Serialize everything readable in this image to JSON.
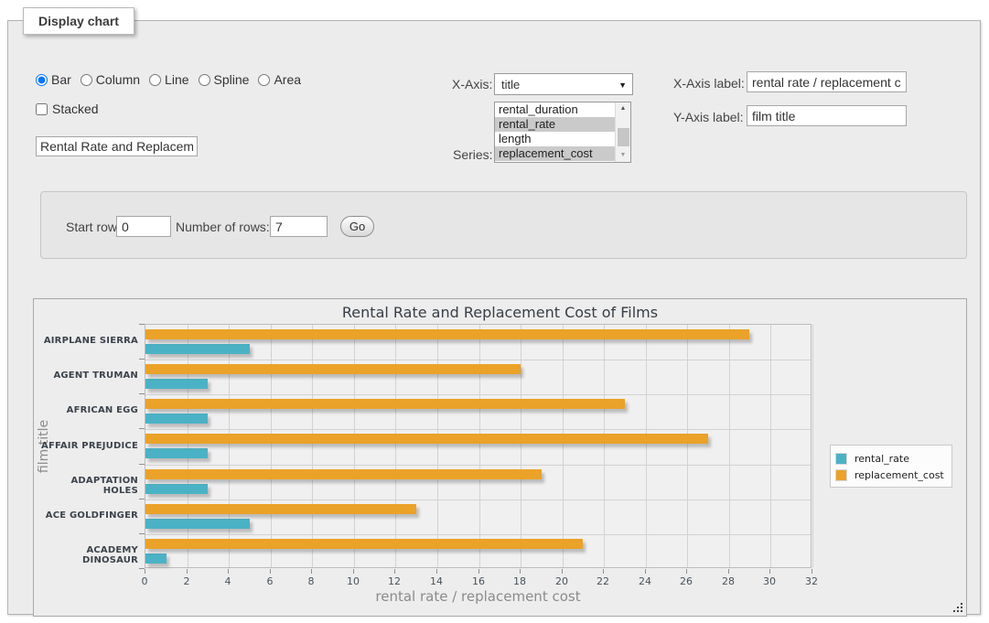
{
  "panel": {
    "legend": "Display chart"
  },
  "chart_type": {
    "options": [
      {
        "label": "Bar",
        "selected": true
      },
      {
        "label": "Column",
        "selected": false
      },
      {
        "label": "Line",
        "selected": false
      },
      {
        "label": "Spline",
        "selected": false
      },
      {
        "label": "Area",
        "selected": false
      }
    ]
  },
  "stacked": {
    "label": "Stacked",
    "checked": false
  },
  "title_input": {
    "value": "Rental Rate and Replacement Cost of Films"
  },
  "x_axis": {
    "label": "X-Axis:",
    "value": "title",
    "arrow_icon": "▼"
  },
  "series_select": {
    "label": "Series:",
    "options": [
      {
        "label": "rental_duration",
        "selected": false
      },
      {
        "label": "rental_rate",
        "selected": true
      },
      {
        "label": "length",
        "selected": false
      },
      {
        "label": "replacement_cost",
        "selected": true
      }
    ],
    "scroll_up_icon": "▲",
    "scroll_down_icon": "▼"
  },
  "x_axis_label_field": {
    "label": "X-Axis label:",
    "value": "rental rate / replacement cost"
  },
  "y_axis_label_field": {
    "label": "Y-Axis label:",
    "value": "film title"
  },
  "rows_form": {
    "start_row_label": "Start row:",
    "start_row_value": "0",
    "num_rows_label": "Number of rows:",
    "num_rows_value": "7",
    "go_label": "Go"
  },
  "chart_data": {
    "type": "bar",
    "orientation": "horizontal",
    "title": "Rental Rate and Replacement Cost of Films",
    "xlabel": "rental rate / replacement cost",
    "ylabel": "film title",
    "categories": [
      "AIRPLANE SIERRA",
      "AGENT TRUMAN",
      "AFRICAN EGG",
      "AFFAIR PREJUDICE",
      "ADAPTATION HOLES",
      "ACE GOLDFINGER",
      "ACADEMY DINOSAUR"
    ],
    "series": [
      {
        "name": "rental_rate",
        "color": "#4bb2c5",
        "values": [
          4.99,
          2.99,
          2.99,
          2.99,
          2.99,
          4.99,
          0.99
        ]
      },
      {
        "name": "replacement_cost",
        "color": "#EAA228",
        "values": [
          28.99,
          17.99,
          22.99,
          26.99,
          18.99,
          12.99,
          20.99
        ]
      }
    ],
    "xlim": [
      0,
      32
    ],
    "xticks": [
      0,
      2,
      4,
      6,
      8,
      10,
      12,
      14,
      16,
      18,
      20,
      22,
      24,
      26,
      28,
      30,
      32
    ],
    "grid": true,
    "legend_position": "right"
  }
}
